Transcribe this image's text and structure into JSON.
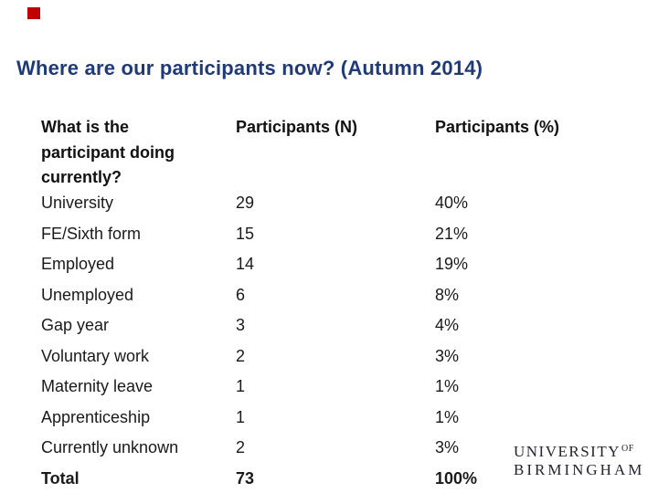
{
  "slide": {
    "title": "Where are our participants now? (Autumn 2014)",
    "title_color": "#1e3a78",
    "background_color": "#ffffff",
    "corner_mark_color": "#c00000"
  },
  "table": {
    "headers": {
      "question": "What is the participant doing currently?",
      "count": "Participants (N)",
      "percent": "Participants (%)"
    },
    "rows": [
      {
        "label": "University",
        "n": "29",
        "pct": "40%"
      },
      {
        "label": "FE/Sixth form",
        "n": "15",
        "pct": "21%"
      },
      {
        "label": "Employed",
        "n": "14",
        "pct": "19%"
      },
      {
        "label": "Unemployed",
        "n": "6",
        "pct": "8%"
      },
      {
        "label": "Gap year",
        "n": "3",
        "pct": "4%"
      },
      {
        "label": "Voluntary work",
        "n": "2",
        "pct": "3%"
      },
      {
        "label": "Maternity leave",
        "n": "1",
        "pct": "1%"
      },
      {
        "label": "Apprenticeship",
        "n": "1",
        "pct": "1%"
      },
      {
        "label": "Currently unknown",
        "n": "2",
        "pct": "3%"
      },
      {
        "label": "Total",
        "n": "73",
        "pct": "100%"
      }
    ]
  },
  "logo": {
    "line1": "UNIVERSITY",
    "of": "OF",
    "line2": "BIRMINGHAM"
  }
}
